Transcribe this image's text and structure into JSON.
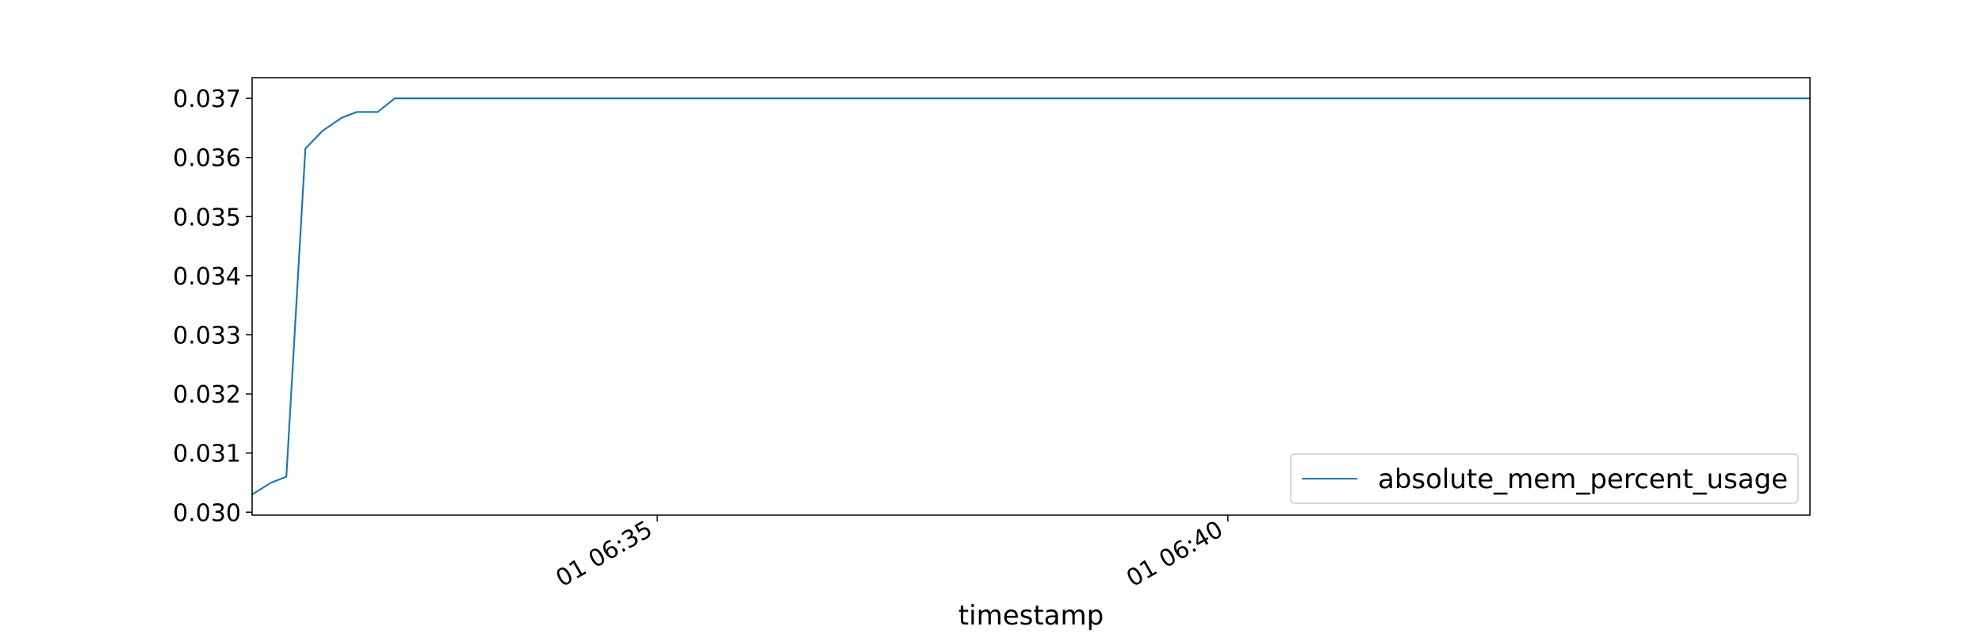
{
  "chart_data": {
    "type": "line",
    "title": "",
    "xlabel": "timestamp",
    "ylabel": "",
    "xlim": [
      "06:31:27",
      "06:45:06"
    ],
    "ylim": [
      0.02995,
      0.03735
    ],
    "grid": false,
    "legend_position": "lower right",
    "x_ticks": [
      {
        "value": "06:35:00",
        "label": "01 06:35"
      },
      {
        "value": "06:40:00",
        "label": "01 06:40"
      }
    ],
    "y_ticks": [
      {
        "value": 0.03,
        "label": "0.030"
      },
      {
        "value": 0.031,
        "label": "0.031"
      },
      {
        "value": 0.032,
        "label": "0.032"
      },
      {
        "value": 0.033,
        "label": "0.033"
      },
      {
        "value": 0.034,
        "label": "0.034"
      },
      {
        "value": 0.035,
        "label": "0.035"
      },
      {
        "value": 0.036,
        "label": "0.036"
      },
      {
        "value": 0.037,
        "label": "0.037"
      }
    ],
    "series": [
      {
        "name": "absolute_mem_percent_usage",
        "color": "#1f77b4",
        "x": [
          "06:31:27",
          "06:31:37",
          "06:31:45",
          "06:31:55",
          "06:32:04",
          "06:32:14",
          "06:32:22",
          "06:32:33",
          "06:32:42",
          "06:32:53",
          "06:33:15",
          "06:35:00",
          "06:40:00",
          "06:45:06"
        ],
        "y": [
          0.0303,
          0.0305,
          0.0306,
          0.03615,
          0.03645,
          0.03667,
          0.03677,
          0.03677,
          0.037,
          0.037,
          0.037,
          0.037,
          0.037,
          0.037
        ]
      }
    ]
  }
}
